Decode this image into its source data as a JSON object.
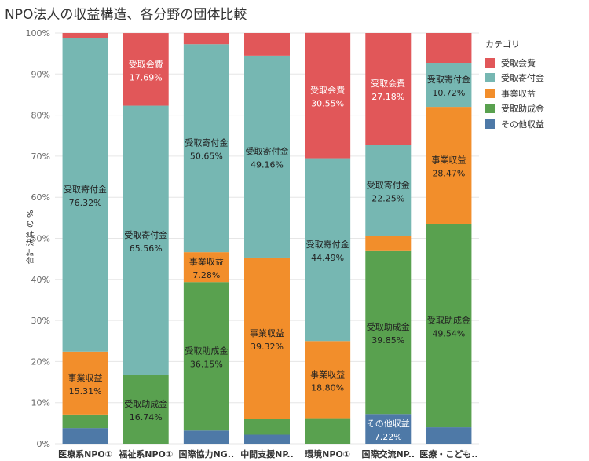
{
  "chart_data": {
    "type": "bar",
    "stacked": true,
    "normalized": true,
    "title": "NPO法人の収益構造、各分野の団体比較",
    "ylabel": "合計 決算 の %",
    "ylim": [
      0,
      100
    ],
    "yticks": [
      "0%",
      "10%",
      "20%",
      "30%",
      "40%",
      "50%",
      "60%",
      "70%",
      "80%",
      "90%",
      "100%"
    ],
    "grid": true,
    "legend_title": "カテゴリ",
    "legend_position": "top-right",
    "categories": [
      "医療系NPO①",
      "福祉系NPO①",
      "国際協力NG..",
      "中間支援NP..",
      "環境NPO①",
      "国際交流NP..",
      "医療・こども.."
    ],
    "series": [
      {
        "name": "その他収益",
        "color": "#4E79A7",
        "values": [
          3.8,
          0.0,
          3.2,
          2.2,
          0.0,
          7.22,
          4.0
        ]
      },
      {
        "name": "受取助成金",
        "color": "#59A14F",
        "values": [
          3.3,
          16.74,
          36.15,
          3.8,
          6.2,
          39.85,
          49.54
        ]
      },
      {
        "name": "事業収益",
        "color": "#F28E2B",
        "values": [
          15.31,
          0.0,
          7.28,
          39.32,
          18.8,
          3.5,
          28.47
        ]
      },
      {
        "name": "受取寄付金",
        "color": "#76B7B2",
        "values": [
          76.32,
          65.56,
          50.65,
          49.16,
          44.49,
          22.25,
          10.72
        ]
      },
      {
        "name": "受取会費",
        "color": "#E15759",
        "values": [
          1.27,
          17.69,
          2.72,
          5.52,
          30.55,
          27.18,
          7.27
        ]
      }
    ],
    "data_labels": [
      {
        "bar": 0,
        "series": "受取寄付金",
        "label": "受取寄付金",
        "value": "76.32%"
      },
      {
        "bar": 0,
        "series": "事業収益",
        "label": "事業収益",
        "value": "15.31%"
      },
      {
        "bar": 1,
        "series": "受取会費",
        "label": "受取会費",
        "value": "17.69%"
      },
      {
        "bar": 1,
        "series": "受取寄付金",
        "label": "受取寄付金",
        "value": "65.56%"
      },
      {
        "bar": 1,
        "series": "受取助成金",
        "label": "受取助成金",
        "value": "16.74%"
      },
      {
        "bar": 2,
        "series": "受取寄付金",
        "label": "受取寄付金",
        "value": "50.65%"
      },
      {
        "bar": 2,
        "series": "事業収益",
        "label": "事業収益",
        "value": "7.28%"
      },
      {
        "bar": 2,
        "series": "受取助成金",
        "label": "受取助成金",
        "value": "36.15%"
      },
      {
        "bar": 3,
        "series": "受取寄付金",
        "label": "受取寄付金",
        "value": "49.16%"
      },
      {
        "bar": 3,
        "series": "事業収益",
        "label": "事業収益",
        "value": "39.32%"
      },
      {
        "bar": 4,
        "series": "受取会費",
        "label": "受取会費",
        "value": "30.55%"
      },
      {
        "bar": 4,
        "series": "受取寄付金",
        "label": "受取寄付金",
        "value": "44.49%"
      },
      {
        "bar": 4,
        "series": "事業収益",
        "label": "事業収益",
        "value": "18.80%"
      },
      {
        "bar": 5,
        "series": "受取会費",
        "label": "受取会費",
        "value": "27.18%"
      },
      {
        "bar": 5,
        "series": "受取寄付金",
        "label": "受取寄付金",
        "value": "22.25%"
      },
      {
        "bar": 5,
        "series": "受取助成金",
        "label": "受取助成金",
        "value": "39.85%"
      },
      {
        "bar": 5,
        "series": "その他収益",
        "label": "その他収益",
        "value": "7.22%"
      },
      {
        "bar": 6,
        "series": "受取寄付金",
        "label": "受取寄付金",
        "value": "10.72%"
      },
      {
        "bar": 6,
        "series": "事業収益",
        "label": "事業収益",
        "value": "28.47%"
      },
      {
        "bar": 6,
        "series": "受取助成金",
        "label": "受取助成金",
        "value": "49.54%"
      }
    ],
    "legend_order": [
      "受取会費",
      "受取寄付金",
      "事業収益",
      "受取助成金",
      "その他収益"
    ]
  }
}
